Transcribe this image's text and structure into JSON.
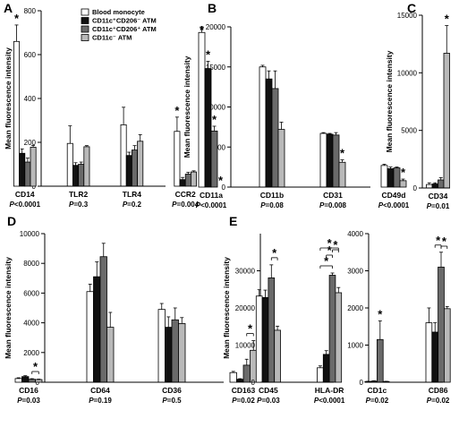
{
  "styles": {
    "colors": [
      "#ffffff",
      "#111111",
      "#6a6a6a",
      "#b9b9b9"
    ],
    "stroke": "#000000"
  },
  "legend": {
    "entries": [
      "Blood monocyte",
      "CD11c⁺CD206⁻ ATM",
      "CD11c⁺CD206⁺ ATM",
      "CD11c⁻ ATM"
    ]
  },
  "chart_data": [
    {
      "panel": "A",
      "type": "bar",
      "ylabel": "Mean fluorescence intensity",
      "ylim": [
        0,
        800
      ],
      "yticks": [
        0,
        200,
        400,
        600,
        800
      ],
      "grid": false,
      "categories": [
        "CD14",
        "TLR2",
        "TLR4",
        "CCR2"
      ],
      "pvalues": [
        "P<0.0001",
        "P=0.3",
        "P=0.2",
        "P=0.004"
      ],
      "series": [
        {
          "name": "Blood monocyte",
          "values": [
            660,
            195,
            280,
            250
          ],
          "errors": [
            75,
            80,
            80,
            65
          ]
        },
        {
          "name": "CD11c⁺CD206⁻ ATM",
          "values": [
            150,
            95,
            140,
            30
          ],
          "errors": [
            20,
            12,
            15,
            10
          ]
        },
        {
          "name": "CD11c⁺CD206⁺ ATM",
          "values": [
            110,
            100,
            165,
            55
          ],
          "errors": [
            18,
            10,
            20,
            8
          ]
        },
        {
          "name": "CD11c⁻ ATM",
          "values": [
            178,
            180,
            205,
            65
          ],
          "errors": [
            8,
            5,
            30,
            5
          ]
        }
      ],
      "stars": [
        {
          "cat": 0,
          "series": 0
        },
        {
          "cat": 3,
          "series": 0
        }
      ]
    },
    {
      "panel": "B",
      "type": "bar",
      "ylabel": "Mean fluorescence intensity",
      "ylim": [
        0,
        20000
      ],
      "yticks": [
        0,
        5000,
        10000,
        15000,
        20000
      ],
      "grid": false,
      "categories": [
        "CD11a",
        "CD11b",
        "CD31",
        "CD49d"
      ],
      "pvalues": [
        "P<0.0001",
        "P=0.08",
        "P=0.008",
        "P<0.0001"
      ],
      "series": [
        {
          "name": "Blood monocyte",
          "values": [
            19300,
            15000,
            6700,
            2700
          ],
          "errors": [
            700,
            200,
            100,
            150
          ]
        },
        {
          "name": "CD11c⁺CD206⁻ ATM",
          "values": [
            14800,
            13500,
            6600,
            2300
          ],
          "errors": [
            900,
            1000,
            100,
            200
          ]
        },
        {
          "name": "CD11c⁺CD206⁺ ATM",
          "values": [
            7000,
            12300,
            6500,
            2400
          ],
          "errors": [
            600,
            2200,
            300,
            100
          ]
        },
        {
          "name": "CD11c⁻ ATM",
          "values": [
            0,
            7200,
            3100,
            800
          ],
          "errors": [
            0,
            900,
            300,
            200
          ]
        }
      ],
      "stars": [
        {
          "cat": 0,
          "series": 0
        },
        {
          "cat": 0,
          "series": 1
        },
        {
          "cat": 0,
          "series": 2
        },
        {
          "cat": 0,
          "series": 3
        },
        {
          "cat": 2,
          "series": 3
        },
        {
          "cat": 3,
          "series": 3
        }
      ]
    },
    {
      "panel": "C",
      "type": "bar",
      "ylabel": "Mean fluorescence intensity",
      "ylim": [
        0,
        15000
      ],
      "yticks": [
        0,
        5000,
        10000,
        15000
      ],
      "grid": false,
      "categories": [
        "CD34"
      ],
      "pvalues": [
        "P=0.01"
      ],
      "series": [
        {
          "name": "Blood monocyte",
          "values": [
            300
          ],
          "errors": [
            150
          ]
        },
        {
          "name": "CD11c⁺CD206⁻ ATM",
          "values": [
            350
          ],
          "errors": [
            100
          ]
        },
        {
          "name": "CD11c⁺CD206⁺ ATM",
          "values": [
            700
          ],
          "errors": [
            200
          ]
        },
        {
          "name": "CD11c⁻ ATM",
          "values": [
            11700
          ],
          "errors": [
            2400
          ]
        }
      ],
      "stars": [
        {
          "cat": 0,
          "series": 3
        }
      ]
    },
    {
      "panel": "D",
      "type": "bar",
      "ylabel": "Mean fluorescence intensity",
      "ylim": [
        0,
        10000
      ],
      "yticks": [
        0,
        2000,
        4000,
        6000,
        8000,
        10000
      ],
      "grid": false,
      "categories": [
        "CD16",
        "CD64",
        "CD36",
        "CD163"
      ],
      "pvalues": [
        "P=0.03",
        "P=0.19",
        "P=0.5",
        "P=0.02"
      ],
      "series": [
        {
          "name": "Blood monocyte",
          "values": [
            250,
            6100,
            4900,
            650
          ],
          "errors": [
            50,
            500,
            400,
            80
          ]
        },
        {
          "name": "CD11c⁺CD206⁻ ATM",
          "values": [
            380,
            7100,
            3700,
            200
          ],
          "errors": [
            60,
            1000,
            700,
            40
          ]
        },
        {
          "name": "CD11c⁺CD206⁺ ATM",
          "values": [
            200,
            8450,
            4200,
            1150
          ],
          "errors": [
            40,
            900,
            800,
            400
          ]
        },
        {
          "name": "CD11c⁻ ATM",
          "values": [
            180,
            3700,
            3950,
            2150
          ],
          "errors": [
            30,
            1000,
            400,
            650
          ]
        }
      ],
      "brackets": [
        {
          "cat": 0,
          "from": 2,
          "to": 3
        },
        {
          "cat": 3,
          "from": 2,
          "to": 3
        }
      ]
    },
    {
      "panel": "E",
      "type": "bar",
      "ylabel": "Mean fluorescence intensity",
      "ylim": [
        0,
        40000
      ],
      "yticks": [
        0,
        10000,
        20000,
        30000
      ],
      "grid": false,
      "categories": [
        "CD45",
        "HLA-DR"
      ],
      "pvalues": [
        "P=0.03",
        "P<0.0001"
      ],
      "series": [
        {
          "name": "Blood monocyte",
          "values": [
            23200,
            3900
          ],
          "errors": [
            1700,
            500
          ]
        },
        {
          "name": "CD11c⁺CD206⁻ ATM",
          "values": [
            22800,
            7500
          ],
          "errors": [
            2000,
            1000
          ]
        },
        {
          "name": "CD11c⁺CD206⁺ ATM",
          "values": [
            28100,
            28800
          ],
          "errors": [
            3500,
            600
          ]
        },
        {
          "name": "CD11c⁻ ATM",
          "values": [
            14000,
            24100
          ],
          "errors": [
            1100,
            1400
          ]
        }
      ],
      "brackets": [
        {
          "cat": 0,
          "from": 2,
          "to": 3
        },
        {
          "cat": 1,
          "from": 0,
          "to": 2
        },
        {
          "cat": 1,
          "from": 1,
          "to": 2
        },
        {
          "cat": 1,
          "from": 0,
          "to": 3
        },
        {
          "cat": 1,
          "from": 2,
          "to": 3
        }
      ]
    },
    {
      "panel": "E2",
      "type": "bar",
      "ylim": [
        0,
        4000
      ],
      "yticks": [
        0,
        1000,
        2000,
        3000,
        4000
      ],
      "grid": false,
      "categories": [
        "CD1c",
        "CD86"
      ],
      "pvalues": [
        "P=0.02",
        "P=0.02"
      ],
      "series": [
        {
          "name": "Blood monocyte",
          "values": [
            20,
            1600
          ],
          "errors": [
            5,
            400
          ]
        },
        {
          "name": "CD11c⁺CD206⁻ ATM",
          "values": [
            30,
            1350
          ],
          "errors": [
            10,
            250
          ]
        },
        {
          "name": "CD11c⁺CD206⁺ ATM",
          "values": [
            1150,
            3100
          ],
          "errors": [
            500,
            400
          ]
        },
        {
          "name": "CD11c⁻ ATM",
          "values": [
            20,
            1980
          ],
          "errors": [
            5,
            60
          ]
        }
      ],
      "stars": [
        {
          "cat": 0,
          "series": 2
        }
      ],
      "brackets": [
        {
          "cat": 1,
          "from": 1,
          "to": 2
        },
        {
          "cat": 1,
          "from": 2,
          "to": 3
        }
      ]
    }
  ]
}
